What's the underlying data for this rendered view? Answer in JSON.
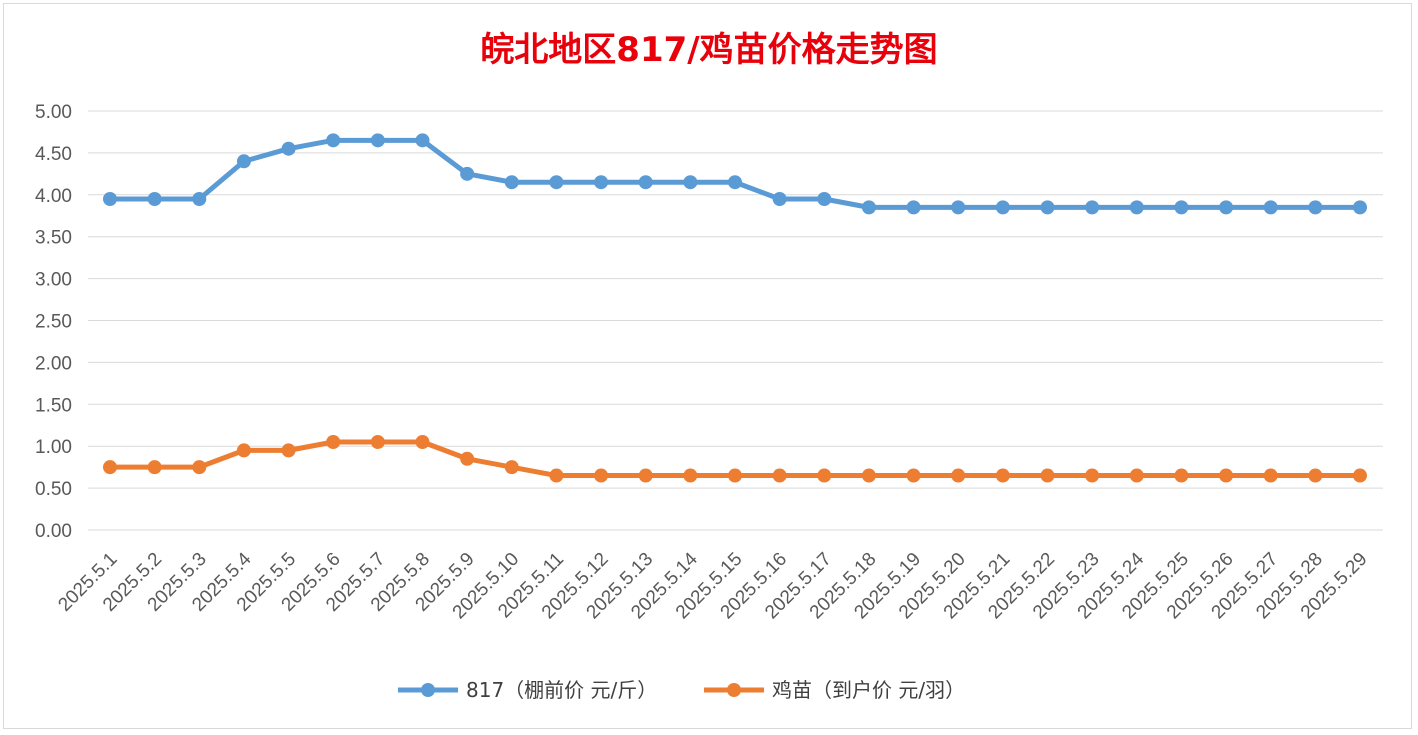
{
  "chart_data": {
    "type": "line",
    "title": "皖北地区817/鸡苗价格走势图",
    "categories": [
      "2025.5.1",
      "2025.5.2",
      "2025.5.3",
      "2025.5.4",
      "2025.5.5",
      "2025.5.6",
      "2025.5.7",
      "2025.5.8",
      "2025.5.9",
      "2025.5.10",
      "2025.5.11",
      "2025.5.12",
      "2025.5.13",
      "2025.5.14",
      "2025.5.15",
      "2025.5.16",
      "2025.5.17",
      "2025.5.18",
      "2025.5.19",
      "2025.5.20",
      "2025.5.21",
      "2025.5.22",
      "2025.5.23",
      "2025.5.24",
      "2025.5.25",
      "2025.5.26",
      "2025.5.27",
      "2025.5.28",
      "2025.5.29"
    ],
    "series": [
      {
        "name": "817（棚前价 元/斤）",
        "color": "#5b9bd5",
        "values": [
          3.95,
          3.95,
          3.95,
          4.4,
          4.55,
          4.65,
          4.65,
          4.65,
          4.25,
          4.15,
          4.15,
          4.15,
          4.15,
          4.15,
          4.15,
          3.95,
          3.95,
          3.85,
          3.85,
          3.85,
          3.85,
          3.85,
          3.85,
          3.85,
          3.85,
          3.85,
          3.85,
          3.85,
          3.85
        ]
      },
      {
        "name": "鸡苗（到户价 元/羽）",
        "color": "#ed7d31",
        "values": [
          0.75,
          0.75,
          0.75,
          0.95,
          0.95,
          1.05,
          1.05,
          1.05,
          0.85,
          0.75,
          0.65,
          0.65,
          0.65,
          0.65,
          0.65,
          0.65,
          0.65,
          0.65,
          0.65,
          0.65,
          0.65,
          0.65,
          0.65,
          0.65,
          0.65,
          0.65,
          0.65,
          0.65,
          0.65
        ]
      }
    ],
    "yticks": [
      "0.00",
      "0.50",
      "1.00",
      "1.50",
      "2.00",
      "2.50",
      "3.00",
      "3.50",
      "4.00",
      "4.50",
      "5.00"
    ],
    "ylim": [
      0,
      5
    ],
    "grid": true,
    "legend_position": "bottom"
  }
}
